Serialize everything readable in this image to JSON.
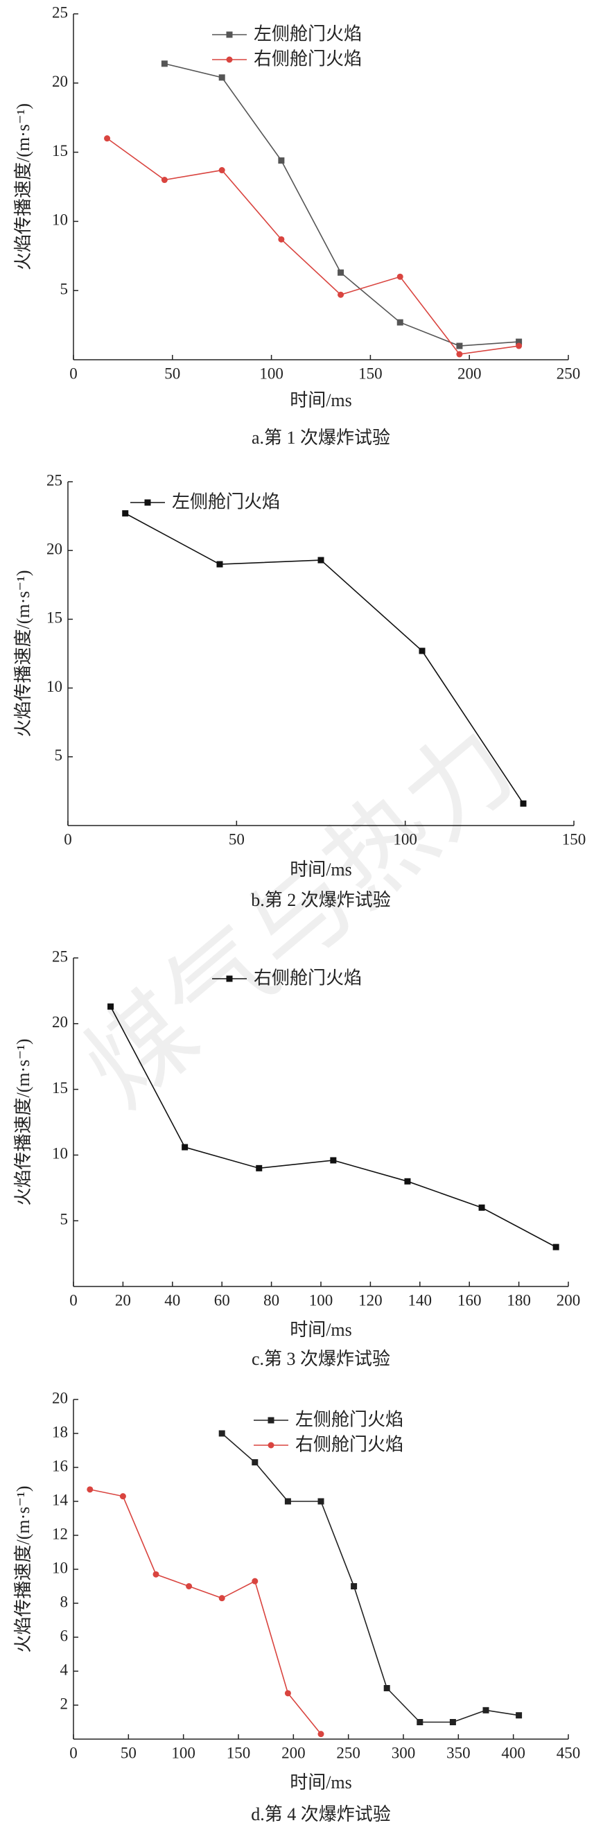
{
  "watermark": "煤气与热力",
  "chart_data": [
    {
      "type": "line",
      "caption": "a.第 1 次爆炸试验",
      "xlabel": "时间/ms",
      "ylabel": "火焰传播速度/(m·s⁻¹)",
      "xlim": [
        0,
        250
      ],
      "xticks": [
        0,
        50,
        100,
        150,
        200,
        250
      ],
      "ylim": [
        0,
        25
      ],
      "yticks": [
        5,
        10,
        15,
        20,
        25
      ],
      "legend": "upper center",
      "series": [
        {
          "name": "左侧舱门火焰",
          "color": "#555555",
          "marker": "square",
          "x": [
            46,
            75,
            105,
            135,
            165,
            195,
            225
          ],
          "values": [
            21.4,
            20.4,
            14.4,
            6.3,
            2.7,
            1.0,
            1.3
          ]
        },
        {
          "name": "右侧舱门火焰",
          "color": "#d9443f",
          "marker": "circle",
          "x": [
            17,
            46,
            75,
            105,
            135,
            165,
            195,
            225
          ],
          "values": [
            16,
            13,
            13.7,
            8.7,
            4.7,
            6,
            0.4,
            1.0
          ]
        }
      ]
    },
    {
      "type": "line",
      "caption": "b.第 2 次爆炸试验",
      "xlabel": "时间/ms",
      "ylabel": "火焰传播速度/(m·s⁻¹)",
      "xlim": [
        0,
        150
      ],
      "xticks": [
        0,
        50,
        100,
        150
      ],
      "ylim": [
        0,
        25
      ],
      "yticks": [
        5,
        10,
        15,
        20,
        25
      ],
      "legend": "upper left",
      "series": [
        {
          "name": "左侧舱门火焰",
          "color": "#111111",
          "marker": "square",
          "x": [
            17,
            45,
            75,
            105,
            135
          ],
          "values": [
            22.7,
            19,
            19.3,
            12.7,
            1.6
          ]
        }
      ]
    },
    {
      "type": "line",
      "caption": "c.第 3 次爆炸试验",
      "xlabel": "时间/ms",
      "ylabel": "火焰传播速度/(m·s⁻¹)",
      "xlim": [
        0,
        200
      ],
      "xticks": [
        0,
        20,
        40,
        60,
        80,
        100,
        120,
        140,
        160,
        180,
        200
      ],
      "ylim": [
        0,
        25
      ],
      "yticks": [
        5,
        10,
        15,
        20,
        25
      ],
      "legend": "upper center",
      "series": [
        {
          "name": "右侧舱门火焰",
          "color": "#111111",
          "marker": "square",
          "x": [
            15,
            45,
            75,
            105,
            135,
            165,
            195
          ],
          "values": [
            21.3,
            10.6,
            9,
            9.6,
            8,
            6,
            3
          ]
        }
      ]
    },
    {
      "type": "line",
      "caption": "d.第 4 次爆炸试验",
      "xlabel": "时间/ms",
      "ylabel": "火焰传播速度/(m·s⁻¹)",
      "xlim": [
        0,
        450
      ],
      "xticks": [
        0,
        50,
        100,
        150,
        200,
        250,
        300,
        350,
        400,
        450
      ],
      "ylim": [
        0,
        20
      ],
      "yticks": [
        2,
        4,
        6,
        8,
        10,
        12,
        14,
        16,
        18,
        20
      ],
      "legend": "upper right",
      "series": [
        {
          "name": "左侧舱门火焰",
          "color": "#222222",
          "marker": "square",
          "x": [
            135,
            165,
            195,
            225,
            255,
            285,
            315,
            345,
            375,
            405
          ],
          "values": [
            18,
            16.3,
            14,
            14,
            9,
            3,
            1,
            1,
            1.7,
            1.4
          ]
        },
        {
          "name": "右侧舱门火焰",
          "color": "#d9443f",
          "marker": "circle",
          "x": [
            15,
            45,
            75,
            105,
            135,
            165,
            195,
            225
          ],
          "values": [
            14.7,
            14.3,
            9.7,
            9,
            8.3,
            9.3,
            2.7,
            0.3
          ]
        }
      ]
    }
  ]
}
